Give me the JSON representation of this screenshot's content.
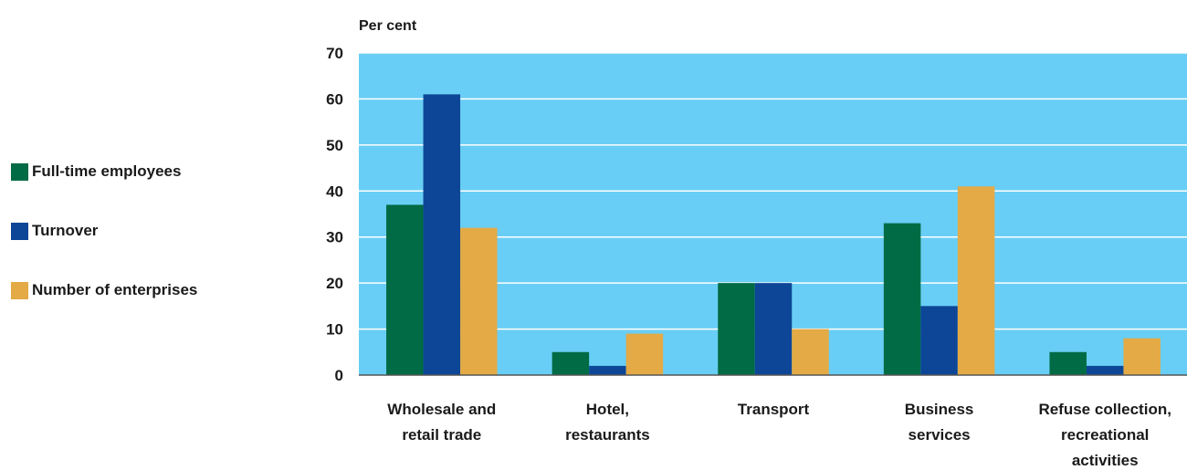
{
  "chart_data": {
    "type": "bar",
    "ylabel": "Per cent",
    "ylim": [
      0,
      70
    ],
    "yticks": [
      0,
      10,
      20,
      30,
      40,
      50,
      60,
      70
    ],
    "grid": true,
    "legend_position": "left",
    "plot_background": "#69cef5",
    "categories": [
      [
        "Wholesale and",
        "retail trade"
      ],
      [
        "Hotel,",
        "restaurants"
      ],
      [
        "Transport"
      ],
      [
        "Business",
        "services"
      ],
      [
        "Refuse collection,",
        "recreational",
        "activities"
      ]
    ],
    "series": [
      {
        "name": "Full-time employees",
        "color": "#006b44",
        "values": [
          37,
          5,
          20,
          33,
          5
        ]
      },
      {
        "name": "Turnover",
        "color": "#0d4696",
        "values": [
          61,
          2,
          20,
          15,
          2
        ]
      },
      {
        "name": "Number of enterprises",
        "color": "#e3aa45",
        "values": [
          32,
          9,
          10,
          41,
          8
        ]
      }
    ]
  }
}
